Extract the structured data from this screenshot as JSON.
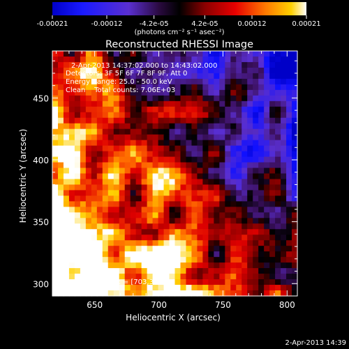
{
  "chart_data": {
    "type": "heatmap",
    "title": "Reconstructed RHESSI Image",
    "xlabel": "Heliocentric X (arcsec)",
    "ylabel": "Heliocentric Y (arcsec)",
    "xlim": [
      617,
      808
    ],
    "ylim": [
      290,
      488
    ],
    "x_ticks": [
      650,
      700,
      750,
      800
    ],
    "y_ticks": [
      300,
      350,
      400,
      450
    ],
    "colorbar": {
      "min": -0.00021,
      "max": 0.00021,
      "tick_values": [
        -0.00021,
        -0.00012,
        -4.2e-05,
        4.2e-05,
        0.00012,
        0.00021
      ],
      "tick_labels": [
        "-0.00021",
        "-0.00012",
        "-4.2e-05",
        "4.2e-05",
        "0.00012",
        "0.00021"
      ],
      "units_label": "(photons cm⁻² s⁻¹ asec⁻²)"
    },
    "annotations": {
      "time_range": "2-Apr-2013 14:37:02.000 to 14:43:02.000",
      "detectors": "Detectors: 3F 5F 6F 7F 8F 9F, Att 0",
      "energy": "Energy Range: 25.0 - 50.0 keV",
      "clean": "Clean    Total counts: 7.06E+03",
      "peak": "Position of Peak = [703,318]"
    },
    "timestamp": "2-Apr-2013 14:39",
    "peak_position": [
      703,
      318
    ],
    "colors": {
      "colormap": [
        "#0000c8",
        "#1010ff",
        "#5a2fd0",
        "#3c1060",
        "#000000",
        "#7a0000",
        "#e00000",
        "#ff6a00",
        "#ffd000",
        "#ffffff"
      ],
      "axis": "#ffffff",
      "background": "#000000"
    },
    "grid": false,
    "intensity_description": "Values near zero-to-positive over the lower-left (high X small, low Y) forming a bright yellow/white region peaking near [703,318]; negative (purple/blue) values over the upper right, with scattered positive red blobs."
  }
}
